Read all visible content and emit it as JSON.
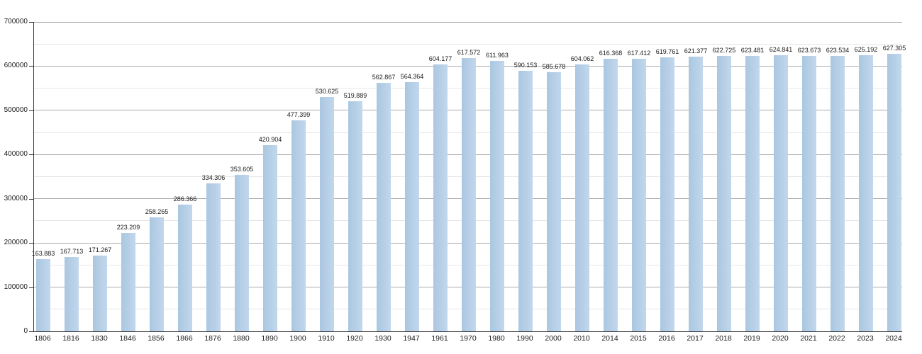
{
  "chart_data": {
    "type": "bar",
    "title": "",
    "xlabel": "",
    "ylabel": "",
    "legend": "none",
    "grid": "horizontal, major every 100000, minor every 50000",
    "ylim": [
      0,
      700000
    ],
    "y_major_step": 100000,
    "y_minor_step": 50000,
    "y_tick_labels": [
      "0",
      "100000",
      "200000",
      "300000",
      "400000",
      "500000",
      "600000",
      "700000"
    ],
    "categories": [
      "1806",
      "1816",
      "1830",
      "1846",
      "1856",
      "1866",
      "1876",
      "1880",
      "1890",
      "1900",
      "1910",
      "1920",
      "1930",
      "1947",
      "1961",
      "1970",
      "1980",
      "1990",
      "2000",
      "2010",
      "2014",
      "2015",
      "2016",
      "2017",
      "2018",
      "2019",
      "2020",
      "2021",
      "2022",
      "2023",
      "2024"
    ],
    "values": [
      163883,
      167713,
      171267,
      223209,
      258265,
      286366,
      334306,
      353605,
      420904,
      477399,
      530625,
      519889,
      562867,
      564364,
      604177,
      617572,
      611963,
      590153,
      585678,
      604062,
      616368,
      617412,
      619761,
      621377,
      622725,
      623481,
      624841,
      623673,
      623534,
      625192,
      627305
    ],
    "value_labels": [
      "163.883",
      "167.713",
      "171.267",
      "223.209",
      "258.265",
      "286.366",
      "334.306",
      "353.605",
      "420.904",
      "477.399",
      "530.625",
      "519.889",
      "562.867",
      "564.364",
      "604.177",
      "617.572",
      "611.963",
      "590.153",
      "585.678",
      "604.062",
      "616.368",
      "617.412",
      "619.761",
      "621.377",
      "622.725",
      "623.481",
      "624.841",
      "623.673",
      "623.534",
      "625.192",
      "627.305"
    ],
    "colors": {
      "bar_fill_left": "#aac7e1",
      "bar_fill_right": "#c2d7ec",
      "major_gridline": "#ababab",
      "minor_gridline": "#e6e6e6",
      "axis": "#333333",
      "label_text": "#1a1a1a",
      "background": "#ffffff"
    }
  }
}
